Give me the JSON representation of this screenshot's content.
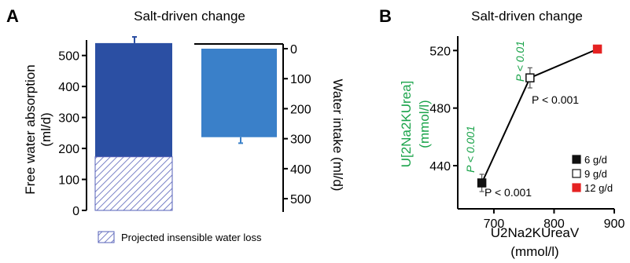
{
  "chart_data": [
    {
      "panel_label": "A",
      "type": "bar",
      "title": "Salt-driven change",
      "left_axis": {
        "label_line1": "Free water absorption",
        "label_line2": "(ml/d)",
        "ylim": [
          0,
          560
        ],
        "ticks": [
          "0",
          "100",
          "200",
          "300",
          "400",
          "500"
        ]
      },
      "right_axis": {
        "label": "Water intake (ml/d)",
        "ylim": [
          0,
          560
        ],
        "inverted": true,
        "ticks": [
          "0",
          "100",
          "200",
          "300",
          "400",
          "500"
        ]
      },
      "bars": [
        {
          "name": "free-water-absorption",
          "value": 540,
          "error": 20,
          "color": "#2b4fa3",
          "hatched_portion": 173
        },
        {
          "name": "water-intake",
          "value": 295,
          "error": 20,
          "color": "#3a80c9"
        }
      ],
      "legend": {
        "label": "Projected insensible water loss",
        "hatch_color": "#5560b8"
      }
    },
    {
      "panel_label": "B",
      "type": "line",
      "title": "Salt-driven change",
      "xlabel_line1": "U2Na2KUreaV",
      "xlabel_line2": "(mmol/l)",
      "ylabel_line1": "U[2Na2KUrea]",
      "ylabel_line2": "(mmol/l)",
      "ylabel_color": "#1aa34a",
      "xlim": [
        640,
        900
      ],
      "ylim": [
        410,
        530
      ],
      "xticks": [
        "700",
        "800",
        "900"
      ],
      "yticks": [
        "440",
        "480",
        "520"
      ],
      "points": [
        {
          "x": 680,
          "y": 428,
          "yerr": 6,
          "label": "6 g/d",
          "color": "#111111",
          "fill": "#111111"
        },
        {
          "x": 760,
          "y": 501,
          "yerr": 7,
          "label": "9 g/d",
          "color": "#111111",
          "fill": "#ffffff"
        },
        {
          "x": 872,
          "y": 521,
          "yerr": 0,
          "label": "12 g/d",
          "color": "#e52222",
          "fill": "#e52222"
        }
      ],
      "annotations": {
        "green_low": "P < 0.001",
        "green_high": "P < 0.01",
        "black_low": "P < 0.001",
        "black_high": "P < 0.001"
      },
      "annotation_color": "#1aa34a"
    }
  ]
}
